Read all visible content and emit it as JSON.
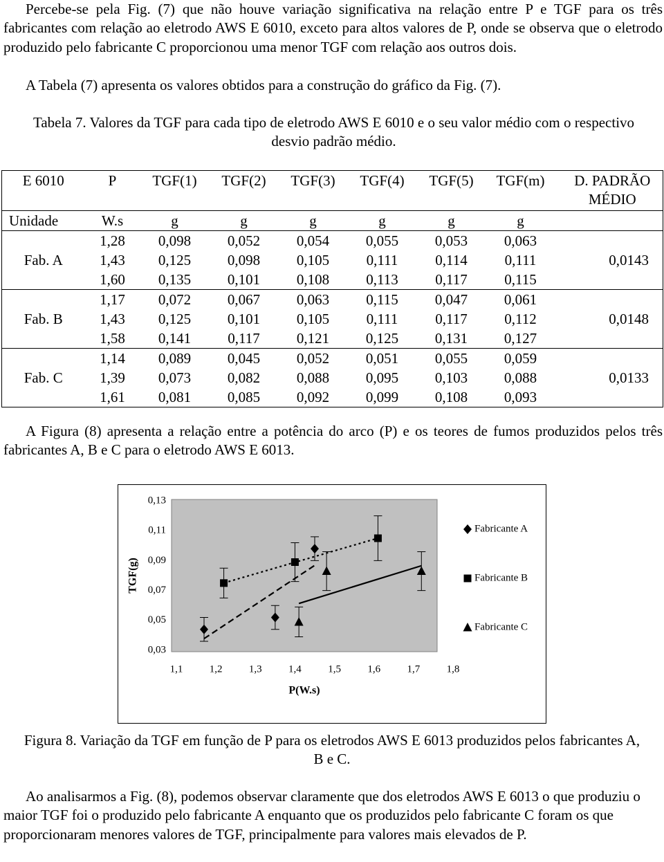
{
  "intro": {
    "paragraphs": [
      "Percebe-se pela Fig. (7) que não houve variação significativa na relação entre P e TGF para os três fabricantes com relação ao eletrodo AWS E 6010, exceto para altos valores de P, onde se observa que o eletrodo produzido pelo fabricante C proporcionou uma menor TGF com relação aos outros dois.",
      "A Tabela (7) apresenta os valores obtidos para a construção do gráfico da Fig. (7)."
    ]
  },
  "table_caption": "Tabela 7. Valores da TGF para cada tipo de eletrodo AWS E 6010 e o seu valor médio com o respectivo desvio padrão médio.",
  "table": {
    "header": [
      "E 6010",
      "P",
      "TGF(1)",
      "TGF(2)",
      "TGF(3)",
      "TGF(4)",
      "TGF(5)",
      "TGF(m)",
      "D. PADRÃO MÉDIO"
    ],
    "units": [
      "Unidade",
      "W.s",
      "g",
      "g",
      "g",
      "g",
      "g",
      "g"
    ],
    "groups": [
      {
        "label": "Fab. A",
        "std": "0,0143",
        "rows": [
          [
            "1,28",
            "0,098",
            "0,052",
            "0,054",
            "0,055",
            "0,053",
            "0,063"
          ],
          [
            "1,43",
            "0,125",
            "0,098",
            "0,105",
            "0,111",
            "0,114",
            "0,111"
          ],
          [
            "1,60",
            "0,135",
            "0,101",
            "0,108",
            "0,113",
            "0,117",
            "0,115"
          ]
        ]
      },
      {
        "label": "Fab. B",
        "std": "0,0148",
        "rows": [
          [
            "1,17",
            "0,072",
            "0,067",
            "0,063",
            "0,115",
            "0,047",
            "0,061"
          ],
          [
            "1,43",
            "0,125",
            "0,101",
            "0,105",
            "0,111",
            "0,117",
            "0,112"
          ],
          [
            "1,58",
            "0,141",
            "0,117",
            "0,121",
            "0,125",
            "0,131",
            "0,127"
          ]
        ]
      },
      {
        "label": "Fab. C",
        "std": "0,0133",
        "rows": [
          [
            "1,14",
            "0,089",
            "0,045",
            "0,052",
            "0,051",
            "0,055",
            "0,059"
          ],
          [
            "1,39",
            "0,073",
            "0,082",
            "0,088",
            "0,095",
            "0,103",
            "0,088"
          ],
          [
            "1,61",
            "0,081",
            "0,085",
            "0,092",
            "0,099",
            "0,108",
            "0,093"
          ]
        ]
      }
    ]
  },
  "paragraph_after_table": "A Figura (8) apresenta a relação entre a potência do arco (P) e os teores de fumos produzidos pelos três fabricantes A, B e C para o eletrodo AWS E 6013.",
  "chart_data": {
    "type": "scatter",
    "x_label": "P(W.s)",
    "y_label": "TGF(g)",
    "xlim": [
      1.1,
      1.8
    ],
    "xticks": [
      {
        "value": 1.1,
        "label": "1,1"
      },
      {
        "value": 1.2,
        "label": "1,2"
      },
      {
        "value": 1.3,
        "label": "1,3"
      },
      {
        "value": 1.4,
        "label": "1,4"
      },
      {
        "value": 1.5,
        "label": "1,5"
      },
      {
        "value": 1.6,
        "label": "1,6"
      },
      {
        "value": 1.7,
        "label": "1,7"
      },
      {
        "value": 1.8,
        "label": "1,8"
      }
    ],
    "ylim": [
      0.03,
      0.13
    ],
    "yticks": [
      {
        "value": 0.03,
        "label": "0,03"
      },
      {
        "value": 0.05,
        "label": "0,05"
      },
      {
        "value": 0.07,
        "label": "0,07"
      },
      {
        "value": 0.09,
        "label": "0,09"
      },
      {
        "value": 0.11,
        "label": "0,11"
      },
      {
        "value": 0.13,
        "label": "0,13"
      }
    ],
    "grid": false,
    "legend": "right",
    "plot_background": "#c0c0c0",
    "series": [
      {
        "name": "Fabricante A",
        "color": "#000000",
        "marker": "diamond",
        "trendline": "dashed",
        "x": [
          1.17,
          1.35,
          1.45
        ],
        "values": [
          0.044,
          0.052,
          0.098
        ],
        "errors": [
          0.008,
          0.008,
          0.008
        ]
      },
      {
        "name": "Fabricante B",
        "color": "#000000",
        "marker": "square",
        "trendline": "dotted",
        "x": [
          1.22,
          1.4,
          1.61
        ],
        "values": [
          0.075,
          0.089,
          0.105
        ],
        "errors": [
          0.01,
          0.013,
          0.015
        ]
      },
      {
        "name": "Fabricante C",
        "color": "#000000",
        "marker": "triangle",
        "trendline": "solid",
        "x": [
          1.41,
          1.48,
          1.72
        ],
        "values": [
          0.049,
          0.083,
          0.083
        ],
        "errors": [
          0.01,
          0.013,
          0.013
        ]
      }
    ]
  },
  "figure_caption": "Figura 8. Variação da TGF em função de P para os eletrodos AWS E 6013 produzidos pelos fabricantes A, B e C.",
  "closing_paragraph": "Ao analisarmos a Fig. (8), podemos observar claramente que dos eletrodos AWS E 6013 o que produziu o maior TGF foi o produzido pelo fabricante A enquanto que os produzidos pelo fabricante C foram os que proporcionaram menores valores de TGF, principalmente para valores mais elevados de P."
}
